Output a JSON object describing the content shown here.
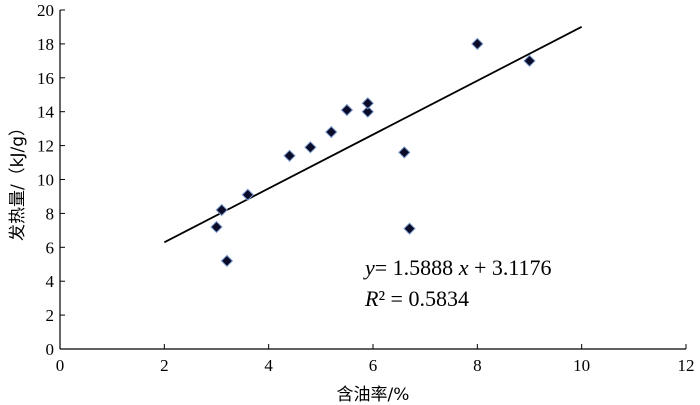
{
  "chart_data": {
    "type": "scatter",
    "title": "",
    "xlabel": "含油率/%",
    "ylabel": "发热量/（kJ/g）",
    "xlim": [
      0,
      12
    ],
    "ylim": [
      0,
      20
    ],
    "x_ticks": [
      "0",
      "2",
      "4",
      "6",
      "8",
      "10",
      "12"
    ],
    "y_ticks": [
      "0",
      "2",
      "4",
      "6",
      "8",
      "10",
      "12",
      "14",
      "16",
      "18",
      "20"
    ],
    "grid": false,
    "series": [
      {
        "points": [
          {
            "x": 3.0,
            "y": 7.2
          },
          {
            "x": 3.1,
            "y": 8.2
          },
          {
            "x": 3.2,
            "y": 5.2
          },
          {
            "x": 3.6,
            "y": 9.1
          },
          {
            "x": 4.4,
            "y": 11.4
          },
          {
            "x": 4.8,
            "y": 11.9
          },
          {
            "x": 5.2,
            "y": 12.8
          },
          {
            "x": 5.5,
            "y": 14.1
          },
          {
            "x": 5.9,
            "y": 14.0
          },
          {
            "x": 5.9,
            "y": 14.5
          },
          {
            "x": 6.6,
            "y": 11.6
          },
          {
            "x": 6.7,
            "y": 7.1
          },
          {
            "x": 8.0,
            "y": 18.0
          },
          {
            "x": 9.0,
            "y": 17.0
          }
        ]
      }
    ],
    "trendline": {
      "slope": 1.5888,
      "intercept": 3.1176,
      "x_range": [
        2,
        10
      ],
      "equation": "= 1.5888x + 3.1176",
      "equation_y": "y",
      "equation_x": "x",
      "r2_label": "R",
      "r2_value": "² = 0.5834"
    },
    "colors": {
      "marker_fill": "#0b0b2a",
      "marker_stroke": "#7f9fd0",
      "line": "#000000"
    }
  }
}
